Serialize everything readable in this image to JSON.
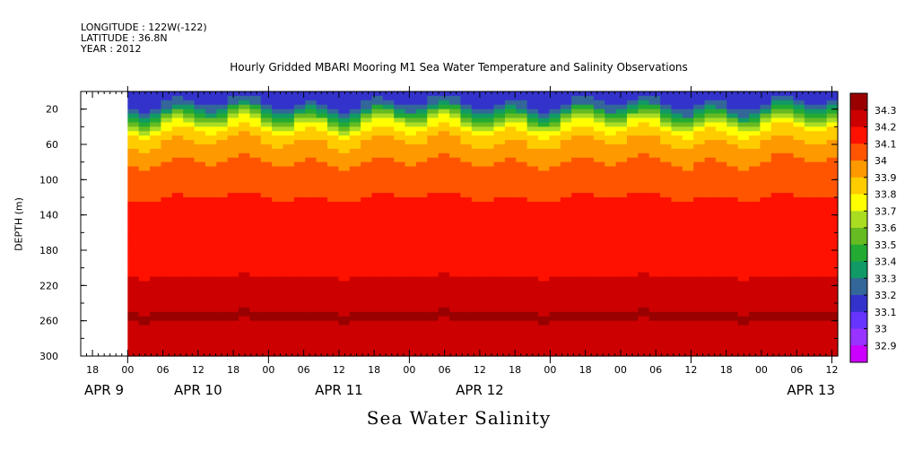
{
  "header": {
    "longitude": "LONGITUDE : 122W(-122)",
    "latitude": "LATITUDE : 36.8N",
    "year": "YEAR : 2012"
  },
  "chart_data": {
    "type": "heatmap",
    "title": "Hourly Gridded MBARI Mooring M1 Sea Water Temperature and Salinity Observations",
    "subtitle": "Sea Water Salinity",
    "ylabel": "DEPTH (m)",
    "xlabel": "",
    "ylim": [
      300,
      0
    ],
    "y_ticks": [
      20,
      60,
      100,
      140,
      180,
      220,
      260,
      300
    ],
    "x_range_hours": [
      -8,
      121
    ],
    "x_tick_labels": [
      "18",
      "00",
      "06",
      "12",
      "18",
      "00",
      "06",
      "12",
      "18",
      "00",
      "06",
      "12",
      "18",
      "00"
    ],
    "x_tick_hours": [
      -6,
      0,
      6,
      12,
      18,
      24,
      30,
      36,
      42,
      48,
      54,
      60,
      66,
      72
    ],
    "date_labels": [
      "APR  9",
      "APR 10",
      "APR 11",
      "APR 12",
      "APR 13"
    ],
    "data_start_hour": 0,
    "colorbar": {
      "levels": [
        32.9,
        33,
        33.1,
        33.2,
        33.3,
        33.4,
        33.5,
        33.6,
        33.7,
        33.8,
        33.9,
        34,
        34.1,
        34.2,
        34.3
      ],
      "labels": [
        "32.9",
        "33",
        "33.1",
        "33.2",
        "33.3",
        "33.4",
        "33.5",
        "33.6",
        "33.7",
        "33.8",
        "33.9",
        "34",
        "34.1",
        "34.2",
        "34.3"
      ],
      "colors": [
        "#cc00ff",
        "#9933ff",
        "#6633ff",
        "#3333cc",
        "#336699",
        "#119966",
        "#22aa33",
        "#66bb22",
        "#aadd22",
        "#ffff00",
        "#ffcc00",
        "#ff9900",
        "#ff5500",
        "#ff1100",
        "#cc0000",
        "#990000"
      ]
    },
    "depth_profile": [
      {
        "depth": 0,
        "value": 33.1
      },
      {
        "depth": 10,
        "value": 33.15
      },
      {
        "depth": 20,
        "value": 33.3
      },
      {
        "depth": 30,
        "value": 33.55
      },
      {
        "depth": 40,
        "value": 33.75
      },
      {
        "depth": 50,
        "value": 33.85
      },
      {
        "depth": 60,
        "value": 33.92
      },
      {
        "depth": 80,
        "value": 34.0
      },
      {
        "depth": 100,
        "value": 34.05
      },
      {
        "depth": 120,
        "value": 34.1
      },
      {
        "depth": 140,
        "value": 34.15
      },
      {
        "depth": 160,
        "value": 34.18
      },
      {
        "depth": 180,
        "value": 34.16
      },
      {
        "depth": 200,
        "value": 34.18
      },
      {
        "depth": 220,
        "value": 34.22
      },
      {
        "depth": 240,
        "value": 34.25
      },
      {
        "depth": 250,
        "value": 34.3
      },
      {
        "depth": 260,
        "value": 34.3
      },
      {
        "depth": 270,
        "value": 34.25
      },
      {
        "depth": 300,
        "value": 34.22
      }
    ]
  }
}
